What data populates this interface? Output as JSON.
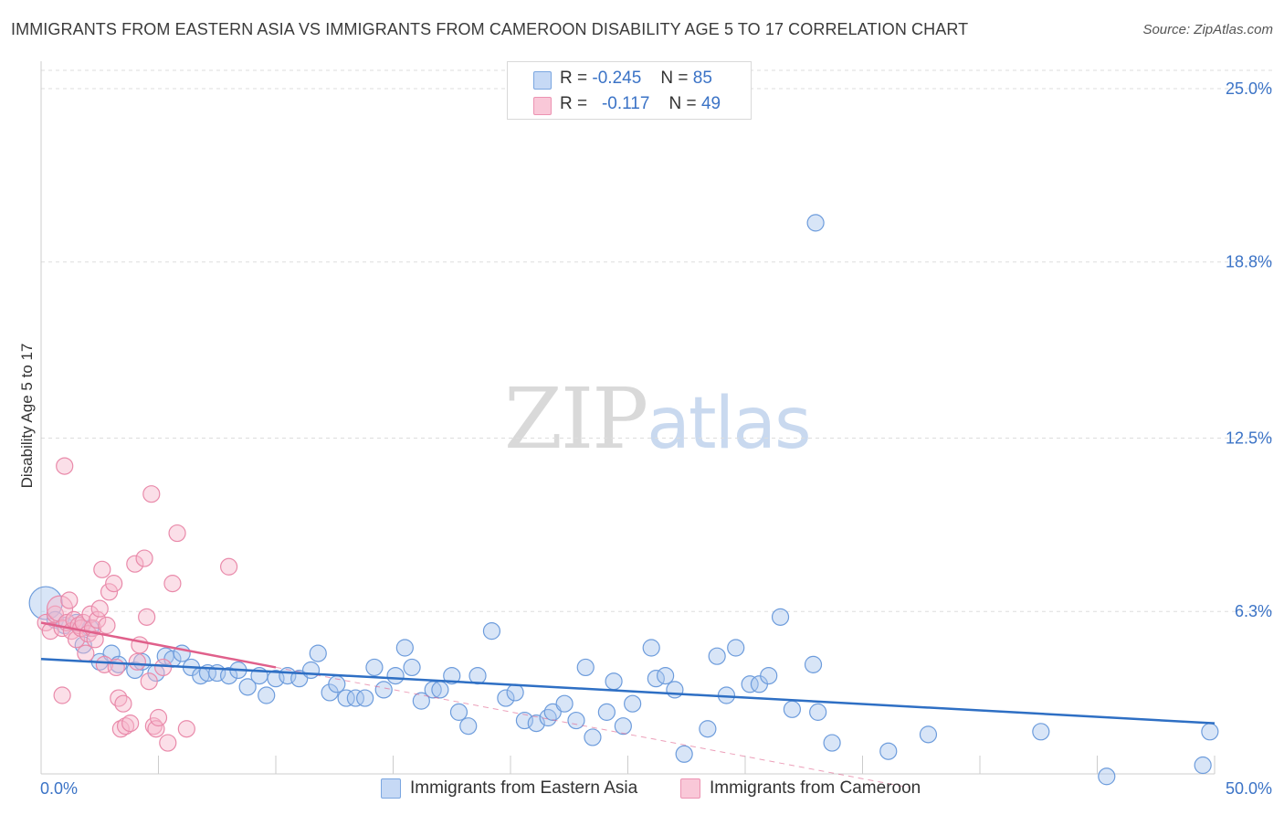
{
  "header": {
    "title": "IMMIGRANTS FROM EASTERN ASIA VS IMMIGRANTS FROM CAMEROON DISABILITY AGE 5 TO 17 CORRELATION CHART",
    "source": "Source: ZipAtlas.com"
  },
  "watermark": {
    "zip": "ZIP",
    "atlas": "atlas"
  },
  "stats": {
    "r_label": "R =",
    "n_label": "N =",
    "blue": {
      "r": "-0.245",
      "n": "85"
    },
    "pink": {
      "r": "-0.117",
      "n": "49"
    }
  },
  "legend": {
    "blue": "Immigrants from Eastern Asia",
    "pink": "Immigrants from Cameroon"
  },
  "colors": {
    "blue_fill": "#a9c6ee",
    "blue_stroke": "#6d9cdc",
    "blue_line": "#2e6fc4",
    "pink_fill": "#f6b9cc",
    "pink_stroke": "#e98aaa",
    "pink_line": "#e0608b",
    "axis_label": "#3b73c6",
    "grid": "#dddddd"
  },
  "chart_data": {
    "type": "scatter",
    "title": "IMMIGRANTS FROM EASTERN ASIA VS IMMIGRANTS FROM CAMEROON DISABILITY AGE 5 TO 17 CORRELATION CHART",
    "xlabel": "",
    "ylabel": "Disability Age 5 to 17",
    "xlim": [
      0,
      50
    ],
    "ylim": [
      0,
      26
    ],
    "x_tick_labels": [
      "0.0%",
      "50.0%"
    ],
    "y_ticks": [
      6.3,
      12.5,
      18.8,
      25.0
    ],
    "y_tick_labels": [
      "6.3%",
      "12.5%",
      "18.8%",
      "25.0%"
    ],
    "grid": true,
    "series": [
      {
        "name": "Immigrants from Eastern Asia",
        "color": "blue",
        "trend": {
          "x": [
            0,
            50
          ],
          "y": [
            4.6,
            2.3
          ]
        },
        "points": [
          [
            0.2,
            6.6
          ],
          [
            0.6,
            6.0
          ],
          [
            1.0,
            5.8
          ],
          [
            1.5,
            5.9
          ],
          [
            1.8,
            5.1
          ],
          [
            2.1,
            5.7
          ],
          [
            2.5,
            4.5
          ],
          [
            3.0,
            4.8
          ],
          [
            3.3,
            4.4
          ],
          [
            4.0,
            4.2
          ],
          [
            4.3,
            4.5
          ],
          [
            4.9,
            4.1
          ],
          [
            5.3,
            4.7
          ],
          [
            5.6,
            4.6
          ],
          [
            6.0,
            4.8
          ],
          [
            6.4,
            4.3
          ],
          [
            6.8,
            4.0
          ],
          [
            7.1,
            4.1
          ],
          [
            7.5,
            4.1
          ],
          [
            8.0,
            4.0
          ],
          [
            8.4,
            4.2
          ],
          [
            8.8,
            3.6
          ],
          [
            9.3,
            4.0
          ],
          [
            9.6,
            3.3
          ],
          [
            10.0,
            3.9
          ],
          [
            10.5,
            4.0
          ],
          [
            11.0,
            3.9
          ],
          [
            11.5,
            4.2
          ],
          [
            11.8,
            4.8
          ],
          [
            12.3,
            3.4
          ],
          [
            12.6,
            3.7
          ],
          [
            13.0,
            3.2
          ],
          [
            13.4,
            3.2
          ],
          [
            13.8,
            3.2
          ],
          [
            14.2,
            4.3
          ],
          [
            14.6,
            3.5
          ],
          [
            15.1,
            4.0
          ],
          [
            15.5,
            5.0
          ],
          [
            15.8,
            4.3
          ],
          [
            16.2,
            3.1
          ],
          [
            16.7,
            3.5
          ],
          [
            17.0,
            3.5
          ],
          [
            17.5,
            4.0
          ],
          [
            17.8,
            2.7
          ],
          [
            18.2,
            2.2
          ],
          [
            18.6,
            4.0
          ],
          [
            19.2,
            5.6
          ],
          [
            19.8,
            3.2
          ],
          [
            20.2,
            3.4
          ],
          [
            20.6,
            2.4
          ],
          [
            21.1,
            2.3
          ],
          [
            21.6,
            2.5
          ],
          [
            21.8,
            2.7
          ],
          [
            22.3,
            3.0
          ],
          [
            22.8,
            2.4
          ],
          [
            23.2,
            4.3
          ],
          [
            23.5,
            1.8
          ],
          [
            24.1,
            2.7
          ],
          [
            24.4,
            3.8
          ],
          [
            24.8,
            2.2
          ],
          [
            25.2,
            3.0
          ],
          [
            26.0,
            5.0
          ],
          [
            26.2,
            3.9
          ],
          [
            26.6,
            4.0
          ],
          [
            27.0,
            3.5
          ],
          [
            27.4,
            1.2
          ],
          [
            28.4,
            2.1
          ],
          [
            28.8,
            4.7
          ],
          [
            29.2,
            3.3
          ],
          [
            29.6,
            5.0
          ],
          [
            30.2,
            3.7
          ],
          [
            30.6,
            3.7
          ],
          [
            31.0,
            4.0
          ],
          [
            31.5,
            6.1
          ],
          [
            32.0,
            2.8
          ],
          [
            32.9,
            4.4
          ],
          [
            33.1,
            2.7
          ],
          [
            33.7,
            1.6
          ],
          [
            33.0,
            20.2
          ],
          [
            36.1,
            1.3
          ],
          [
            37.8,
            1.9
          ],
          [
            42.6,
            2.0
          ],
          [
            45.4,
            0.4
          ],
          [
            49.5,
            0.8
          ],
          [
            49.8,
            2.0
          ]
        ]
      },
      {
        "name": "Immigrants from Cameroon",
        "color": "pink",
        "trend": {
          "x": [
            0,
            10
          ],
          "y": [
            5.9,
            4.3
          ]
        },
        "trend_extension": {
          "x": [
            10,
            37
          ],
          "y": [
            4.3,
            0.0
          ]
        },
        "points": [
          [
            0.2,
            5.9
          ],
          [
            0.4,
            5.6
          ],
          [
            0.6,
            6.2
          ],
          [
            0.8,
            6.4
          ],
          [
            0.9,
            5.7
          ],
          [
            1.1,
            5.9
          ],
          [
            1.2,
            6.7
          ],
          [
            1.3,
            5.6
          ],
          [
            1.4,
            6.0
          ],
          [
            1.5,
            5.3
          ],
          [
            1.6,
            5.8
          ],
          [
            1.7,
            5.7
          ],
          [
            1.8,
            5.9
          ],
          [
            1.9,
            4.8
          ],
          [
            2.0,
            5.5
          ],
          [
            2.1,
            6.2
          ],
          [
            2.2,
            5.7
          ],
          [
            2.3,
            5.3
          ],
          [
            2.4,
            6.0
          ],
          [
            2.5,
            6.4
          ],
          [
            2.6,
            7.8
          ],
          [
            2.7,
            4.4
          ],
          [
            2.8,
            5.8
          ],
          [
            2.9,
            7.0
          ],
          [
            3.1,
            7.3
          ],
          [
            3.2,
            4.3
          ],
          [
            3.3,
            3.2
          ],
          [
            3.4,
            2.1
          ],
          [
            3.5,
            3.0
          ],
          [
            3.6,
            2.2
          ],
          [
            3.8,
            2.3
          ],
          [
            4.0,
            8.0
          ],
          [
            4.1,
            4.5
          ],
          [
            4.2,
            5.1
          ],
          [
            4.4,
            8.2
          ],
          [
            4.5,
            6.1
          ],
          [
            4.6,
            3.8
          ],
          [
            4.7,
            10.5
          ],
          [
            4.8,
            2.2
          ],
          [
            4.9,
            2.1
          ],
          [
            5.0,
            2.5
          ],
          [
            5.2,
            4.3
          ],
          [
            5.4,
            1.6
          ],
          [
            5.6,
            7.3
          ],
          [
            5.8,
            9.1
          ],
          [
            6.2,
            2.1
          ],
          [
            8.0,
            7.9
          ],
          [
            1.0,
            11.5
          ],
          [
            0.9,
            3.3
          ]
        ]
      }
    ]
  }
}
